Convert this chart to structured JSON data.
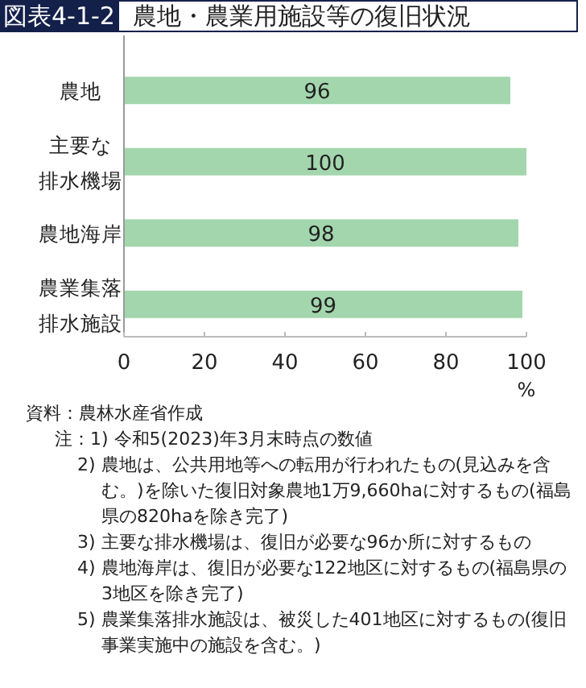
{
  "chart_data": {
    "type": "bar",
    "orientation": "horizontal",
    "subtitle": "図表4-1-2",
    "title": "農地・農業用施設等の復旧状況",
    "categories": [
      "農地",
      "主要な排水機場",
      "農地海岸",
      "農業集落排水施設"
    ],
    "values": [
      96,
      100,
      98,
      99
    ],
    "color": "#a3d6ad",
    "data_labels": true,
    "xlim": [
      0,
      100
    ],
    "xticks": [
      0,
      20,
      40,
      60,
      80,
      100
    ],
    "xlabel": "%",
    "grid": false,
    "annotations": [
      "資料：農林水産省作成",
      "注：1) 令和5(2023)年3月末時点の数値",
      "2) 農地は、公共用地等への転用が行われたもの(見込みを含む。)を除いた復旧対象農地1万9,660haに対するもの(福島県の820haを除き完了)",
      "3) 主要な排水機場は、復旧が必要な96か所に対するもの",
      "4) 農地海岸は、復旧が必要な122地区に対するもの(福島県の3地区を除き完了)",
      "5) 農業集落排水施設は、被災した401地区に対するもの(復旧事業実施中の施設を含む。)"
    ]
  }
}
